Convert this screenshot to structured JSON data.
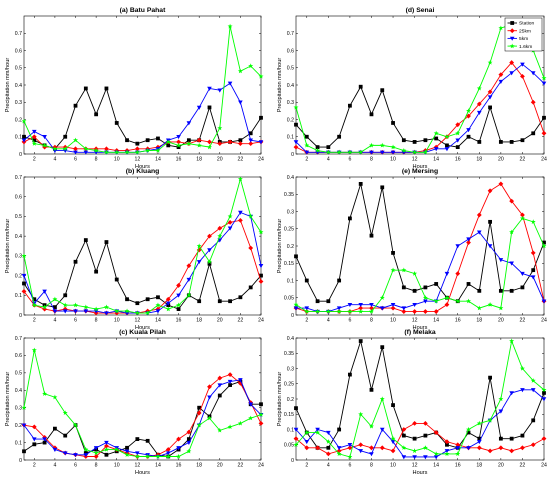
{
  "colors": {
    "Station": "#000000",
    "25km": "#ff0000",
    "5km": "#0000ff",
    "1.6km": "#00ff00"
  },
  "chart_data": [
    {
      "type": "line",
      "title": "(a) Batu Pahat",
      "xlabel": "Hours",
      "ylabel": "Precipitation mm/hour",
      "x": [
        1,
        2,
        3,
        4,
        5,
        6,
        7,
        8,
        9,
        10,
        11,
        12,
        13,
        14,
        15,
        16,
        17,
        18,
        19,
        20,
        21,
        22,
        23,
        24
      ],
      "xticks": [
        2,
        4,
        6,
        8,
        10,
        12,
        14,
        16,
        18,
        20,
        22,
        24
      ],
      "xticklabels": [
        "2",
        "4",
        "6",
        "8",
        "10",
        "12",
        "14",
        "16",
        "18",
        "20",
        "22",
        "24"
      ],
      "ylim": [
        0,
        0.8
      ],
      "yticks": [
        0,
        0.1,
        0.2,
        0.3,
        0.4,
        0.5,
        0.6,
        0.7
      ],
      "yticklabels": [
        "0",
        "0.1",
        "0.2",
        "0.3",
        "0.4",
        "0.5",
        "0.6",
        "0.7"
      ],
      "show_legend": false,
      "series": [
        {
          "name": "Station",
          "values": [
            0.1,
            0.08,
            0.05,
            0.03,
            0.1,
            0.28,
            0.38,
            0.23,
            0.38,
            0.18,
            0.08,
            0.06,
            0.08,
            0.09,
            0.05,
            0.04,
            0.08,
            0.08,
            0.27,
            0.07,
            0.07,
            0.08,
            0.12,
            0.21
          ]
        },
        {
          "name": "25km",
          "values": [
            0.07,
            0.1,
            0.04,
            0.04,
            0.04,
            0.03,
            0.03,
            0.03,
            0.03,
            0.02,
            0.02,
            0.03,
            0.03,
            0.04,
            0.07,
            0.07,
            0.06,
            0.08,
            0.07,
            0.06,
            0.07,
            0.06,
            0.06,
            0.07
          ]
        },
        {
          "name": "5km",
          "values": [
            0.08,
            0.13,
            0.1,
            0.02,
            0.02,
            0.01,
            0.01,
            0.01,
            0.01,
            0.01,
            0.01,
            0.01,
            0.02,
            0.03,
            0.08,
            0.1,
            0.18,
            0.27,
            0.38,
            0.37,
            0.41,
            0.3,
            0.08,
            0.07
          ]
        },
        {
          "name": "1.6km",
          "values": [
            0.19,
            0.06,
            0.05,
            0.03,
            0.03,
            0.08,
            0.03,
            0.02,
            0.01,
            0.01,
            0.01,
            0.01,
            0.02,
            0.02,
            0.07,
            0.05,
            0.06,
            0.05,
            0.04,
            0.15,
            0.74,
            0.48,
            0.51,
            0.45
          ]
        }
      ]
    },
    {
      "type": "line",
      "title": "(d) Senai",
      "xlabel": "Hours",
      "ylabel": "Precipitation mm/hour",
      "x": [
        1,
        2,
        3,
        4,
        5,
        6,
        7,
        8,
        9,
        10,
        11,
        12,
        13,
        14,
        15,
        16,
        17,
        18,
        19,
        20,
        21,
        22,
        23,
        24
      ],
      "xticks": [
        2,
        4,
        6,
        8,
        10,
        12,
        14,
        16,
        18,
        20,
        22,
        24
      ],
      "xticklabels": [
        "2",
        "4",
        "6",
        "8",
        "10",
        "12",
        "14",
        "16",
        "18",
        "20",
        "22",
        "24"
      ],
      "ylim": [
        0,
        0.8
      ],
      "yticks": [
        0,
        0.1,
        0.2,
        0.3,
        0.4,
        0.5,
        0.6,
        0.7
      ],
      "yticklabels": [
        "0",
        "0.1",
        "0.2",
        "0.3",
        "0.4",
        "0.5",
        "0.6",
        "0.7"
      ],
      "show_legend": true,
      "legend_position": "top-right",
      "series": [
        {
          "name": "Station",
          "values": [
            0.17,
            0.1,
            0.04,
            0.04,
            0.1,
            0.28,
            0.39,
            0.23,
            0.37,
            0.18,
            0.08,
            0.07,
            0.08,
            0.09,
            0.05,
            0.04,
            0.1,
            0.07,
            0.27,
            0.07,
            0.07,
            0.08,
            0.12,
            0.21
          ]
        },
        {
          "name": "25km",
          "values": [
            0.04,
            0.01,
            0.01,
            0.01,
            0.01,
            0.01,
            0.01,
            0.01,
            0.01,
            0.01,
            0.01,
            0.01,
            0.02,
            0.04,
            0.1,
            0.17,
            0.22,
            0.29,
            0.36,
            0.46,
            0.53,
            0.45,
            0.3,
            0.12
          ]
        },
        {
          "name": "5km",
          "values": [
            0.07,
            0.01,
            0.01,
            0.01,
            0.01,
            0.01,
            0.01,
            0.01,
            0.01,
            0.01,
            0.01,
            0.01,
            0.01,
            0.03,
            0.03,
            0.08,
            0.14,
            0.24,
            0.33,
            0.42,
            0.47,
            0.52,
            0.47,
            0.41
          ]
        },
        {
          "name": "1.6km",
          "values": [
            0.27,
            0.05,
            0.02,
            0.01,
            0.01,
            0.01,
            0.01,
            0.05,
            0.05,
            0.04,
            0.02,
            0.01,
            0.01,
            0.12,
            0.1,
            0.12,
            0.25,
            0.38,
            0.53,
            0.73,
            0.75,
            0.68,
            0.6,
            0.44
          ]
        }
      ]
    },
    {
      "type": "line",
      "title": "(b) Kluang",
      "xlabel": "Hours",
      "ylabel": "Precipitation mm/hour",
      "x": [
        1,
        2,
        3,
        4,
        5,
        6,
        7,
        8,
        9,
        10,
        11,
        12,
        13,
        14,
        15,
        16,
        17,
        18,
        19,
        20,
        21,
        22,
        23,
        24
      ],
      "xticks": [
        2,
        4,
        6,
        8,
        10,
        12,
        14,
        16,
        18,
        20,
        22,
        24
      ],
      "xticklabels": [
        "2",
        "4",
        "6",
        "8",
        "10",
        "12",
        "14",
        "16",
        "18",
        "20",
        "22",
        "24"
      ],
      "ylim": [
        0,
        0.7
      ],
      "yticks": [
        0,
        0.1,
        0.2,
        0.3,
        0.4,
        0.5,
        0.6,
        0.7
      ],
      "yticklabels": [
        "0",
        "0.1",
        "0.2",
        "0.3",
        "0.4",
        "0.5",
        "0.6",
        "0.7"
      ],
      "show_legend": false,
      "series": [
        {
          "name": "Station",
          "values": [
            0.16,
            0.08,
            0.05,
            0.04,
            0.1,
            0.27,
            0.38,
            0.22,
            0.37,
            0.18,
            0.08,
            0.06,
            0.08,
            0.09,
            0.05,
            0.03,
            0.1,
            0.07,
            0.26,
            0.07,
            0.07,
            0.09,
            0.14,
            0.2
          ]
        },
        {
          "name": "25km",
          "values": [
            0.12,
            0.05,
            0.03,
            0.02,
            0.03,
            0.02,
            0.02,
            0.01,
            0.01,
            0.01,
            0.01,
            0.01,
            0.02,
            0.03,
            0.08,
            0.15,
            0.25,
            0.33,
            0.4,
            0.44,
            0.47,
            0.48,
            0.34,
            0.17
          ]
        },
        {
          "name": "5km",
          "values": [
            0.2,
            0.06,
            0.12,
            0.02,
            0.02,
            0.02,
            0.02,
            0.02,
            0.01,
            0.02,
            0.01,
            0.01,
            0.01,
            0.02,
            0.06,
            0.1,
            0.18,
            0.27,
            0.33,
            0.38,
            0.44,
            0.52,
            0.5,
            0.25
          ]
        },
        {
          "name": "1.6km",
          "values": [
            0.3,
            0.05,
            0.04,
            0.08,
            0.05,
            0.05,
            0.04,
            0.03,
            0.04,
            0.02,
            0.02,
            0.01,
            0.01,
            0.05,
            0.03,
            0.05,
            0.1,
            0.35,
            0.27,
            0.4,
            0.5,
            0.69,
            0.5,
            0.42
          ]
        }
      ]
    },
    {
      "type": "line",
      "title": "(e) Mersing",
      "xlabel": "Hours",
      "ylabel": "Precipitation mm/hour",
      "x": [
        1,
        2,
        3,
        4,
        5,
        6,
        7,
        8,
        9,
        10,
        11,
        12,
        13,
        14,
        15,
        16,
        17,
        18,
        19,
        20,
        21,
        22,
        23,
        24
      ],
      "xticks": [
        2,
        4,
        6,
        8,
        10,
        12,
        14,
        16,
        18,
        20,
        22,
        24
      ],
      "xticklabels": [
        "2",
        "4",
        "6",
        "8",
        "10",
        "12",
        "14",
        "16",
        "18",
        "20",
        "22",
        "24"
      ],
      "ylim": [
        0,
        0.4
      ],
      "yticks": [
        0,
        0.05,
        0.1,
        0.15,
        0.2,
        0.25,
        0.3,
        0.35,
        0.4
      ],
      "yticklabels": [
        "0",
        "0.05",
        "0.1",
        "0.15",
        "0.2",
        "0.25",
        "0.3",
        "0.35",
        "0.4"
      ],
      "show_legend": false,
      "series": [
        {
          "name": "Station",
          "values": [
            0.17,
            0.1,
            0.04,
            0.04,
            0.1,
            0.28,
            0.38,
            0.23,
            0.37,
            0.18,
            0.08,
            0.07,
            0.08,
            0.09,
            0.05,
            0.04,
            0.09,
            0.07,
            0.27,
            0.07,
            0.07,
            0.08,
            0.13,
            0.21
          ]
        },
        {
          "name": "25km",
          "values": [
            0.02,
            0.01,
            0.01,
            0.01,
            0.01,
            0.01,
            0.02,
            0.02,
            0.02,
            0.02,
            0.01,
            0.01,
            0.01,
            0.01,
            0.03,
            0.12,
            0.21,
            0.29,
            0.36,
            0.38,
            0.33,
            0.29,
            0.18,
            0.04
          ]
        },
        {
          "name": "5km",
          "values": [
            0.02,
            0.02,
            0.01,
            0.01,
            0.02,
            0.03,
            0.03,
            0.03,
            0.02,
            0.03,
            0.02,
            0.03,
            0.04,
            0.04,
            0.12,
            0.2,
            0.22,
            0.24,
            0.2,
            0.16,
            0.15,
            0.12,
            0.11,
            0.04
          ]
        },
        {
          "name": "1.6km",
          "values": [
            0.03,
            0.01,
            0.01,
            0.01,
            0.01,
            0.01,
            0.01,
            0.01,
            0.05,
            0.13,
            0.13,
            0.12,
            0.05,
            0.04,
            0.05,
            0.04,
            0.04,
            0.02,
            0.03,
            0.02,
            0.24,
            0.28,
            0.27,
            0.2
          ]
        }
      ]
    },
    {
      "type": "line",
      "title": "(c) Kuala Pilah",
      "xlabel": "Hours",
      "ylabel": "Precipitation mm/hour",
      "x": [
        1,
        2,
        3,
        4,
        5,
        6,
        7,
        8,
        9,
        10,
        11,
        12,
        13,
        14,
        15,
        16,
        17,
        18,
        19,
        20,
        21,
        22,
        23,
        24
      ],
      "xticks": [
        2,
        4,
        6,
        8,
        10,
        12,
        14,
        16,
        18,
        20,
        22,
        24
      ],
      "xticklabels": [
        "2",
        "4",
        "6",
        "8",
        "10",
        "12",
        "14",
        "16",
        "18",
        "20",
        "22",
        "24"
      ],
      "ylim": [
        0,
        0.7
      ],
      "yticks": [
        0,
        0.1,
        0.2,
        0.3,
        0.4,
        0.5,
        0.6,
        0.7
      ],
      "yticklabels": [
        "0",
        "0.1",
        "0.2",
        "0.3",
        "0.4",
        "0.5",
        "0.6",
        "0.7"
      ],
      "show_legend": false,
      "series": [
        {
          "name": "Station",
          "values": [
            0.05,
            0.09,
            0.1,
            0.18,
            0.14,
            0.2,
            0.04,
            0.06,
            0.03,
            0.05,
            0.07,
            0.12,
            0.11,
            0.03,
            0.02,
            0.06,
            0.12,
            0.3,
            0.25,
            0.37,
            0.43,
            0.45,
            0.32,
            0.32
          ]
        },
        {
          "name": "25km",
          "values": [
            0.2,
            0.19,
            0.13,
            0.07,
            0.04,
            0.03,
            0.02,
            0.02,
            0.08,
            0.06,
            0.04,
            0.02,
            0.02,
            0.03,
            0.06,
            0.12,
            0.16,
            0.27,
            0.42,
            0.47,
            0.49,
            0.44,
            0.33,
            0.21
          ]
        },
        {
          "name": "5km",
          "values": [
            0.2,
            0.12,
            0.12,
            0.06,
            0.04,
            0.03,
            0.03,
            0.07,
            0.1,
            0.07,
            0.05,
            0.04,
            0.03,
            0.02,
            0.04,
            0.07,
            0.1,
            0.2,
            0.36,
            0.43,
            0.45,
            0.46,
            0.32,
            0.26
          ]
        },
        {
          "name": "1.6km",
          "values": [
            0.3,
            0.63,
            0.38,
            0.36,
            0.27,
            0.2,
            0.06,
            0.04,
            0.06,
            0.06,
            0.03,
            0.02,
            0.02,
            0.02,
            0.02,
            0.02,
            0.05,
            0.2,
            0.24,
            0.17,
            0.19,
            0.21,
            0.24,
            0.26
          ]
        }
      ]
    },
    {
      "type": "line",
      "title": "(f) Melaka",
      "xlabel": "Hours",
      "ylabel": "Precipitation mm/hour",
      "x": [
        1,
        2,
        3,
        4,
        5,
        6,
        7,
        8,
        9,
        10,
        11,
        12,
        13,
        14,
        15,
        16,
        17,
        18,
        19,
        20,
        21,
        22,
        23,
        24
      ],
      "xticks": [
        2,
        4,
        6,
        8,
        10,
        12,
        14,
        16,
        18,
        20,
        22,
        24
      ],
      "xticklabels": [
        "2",
        "4",
        "6",
        "8",
        "10",
        "12",
        "14",
        "16",
        "18",
        "20",
        "22",
        "24"
      ],
      "ylim": [
        0,
        0.4
      ],
      "yticks": [
        0,
        0.05,
        0.1,
        0.15,
        0.2,
        0.25,
        0.3,
        0.35,
        0.4
      ],
      "yticklabels": [
        "0",
        "0.05",
        "0.1",
        "0.15",
        "0.2",
        "0.25",
        "0.3",
        "0.35",
        "0.4"
      ],
      "show_legend": false,
      "series": [
        {
          "name": "Station",
          "values": [
            0.17,
            0.09,
            0.04,
            0.04,
            0.1,
            0.28,
            0.39,
            0.23,
            0.37,
            0.18,
            0.08,
            0.07,
            0.08,
            0.09,
            0.05,
            0.04,
            0.09,
            0.07,
            0.27,
            0.07,
            0.07,
            0.08,
            0.13,
            0.22
          ]
        },
        {
          "name": "25km",
          "values": [
            0.07,
            0.04,
            0.04,
            0.02,
            0.03,
            0.04,
            0.05,
            0.04,
            0.04,
            0.03,
            0.1,
            0.12,
            0.12,
            0.09,
            0.06,
            0.05,
            0.04,
            0.04,
            0.03,
            0.04,
            0.03,
            0.04,
            0.05,
            0.07
          ]
        },
        {
          "name": "5km",
          "values": [
            0.1,
            0.06,
            0.1,
            0.09,
            0.04,
            0.05,
            0.03,
            0.02,
            0.1,
            0.06,
            0.01,
            0.01,
            0.01,
            0.01,
            0.03,
            0.04,
            0.04,
            0.06,
            0.13,
            0.16,
            0.22,
            0.23,
            0.23,
            0.2
          ]
        },
        {
          "name": "1.6km",
          "values": [
            0.05,
            0.09,
            0.09,
            0.06,
            0.02,
            0.01,
            0.15,
            0.11,
            0.2,
            0.07,
            0.04,
            0.03,
            0.04,
            0.02,
            0.02,
            0.02,
            0.1,
            0.12,
            0.13,
            0.2,
            0.39,
            0.3,
            0.26,
            0.23
          ]
        }
      ]
    }
  ]
}
